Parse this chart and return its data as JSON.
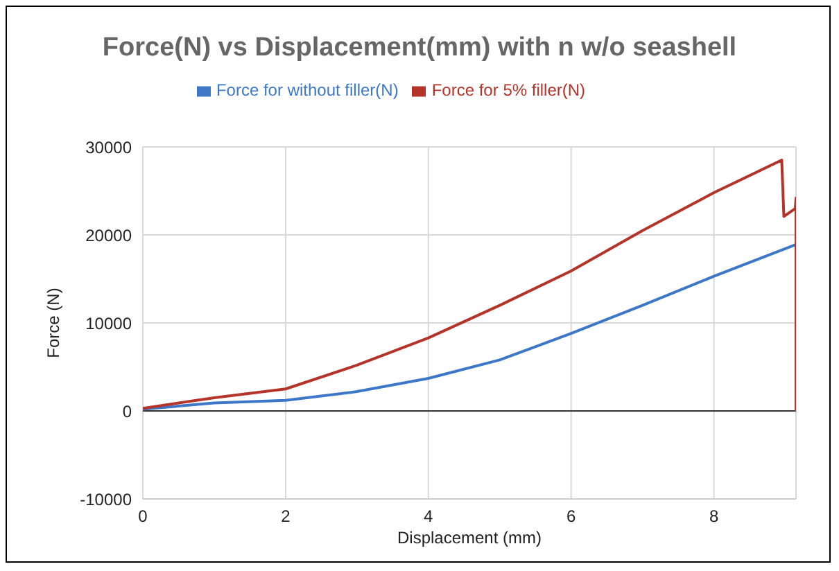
{
  "chart_data": {
    "type": "line",
    "title": "Force(N) vs Displacement(mm) with n w/o seashell",
    "xlabel": "Displacement (mm)",
    "ylabel": "Force (N)",
    "xlim": [
      0,
      9.15
    ],
    "xticks": [
      0,
      2,
      4,
      6,
      8
    ],
    "ylim": [
      -10000,
      30000
    ],
    "yticks": [
      -10000,
      0,
      10000,
      20000,
      30000
    ],
    "grid": true,
    "legend": "top",
    "marker": "none",
    "line_style": "solid",
    "series": [
      {
        "name": "Force for without filler(N)",
        "color": "#3d78c8",
        "x": [
          0,
          1,
          2,
          3,
          4,
          5,
          6,
          7,
          8,
          9.15
        ],
        "values": [
          200,
          900,
          1200,
          2200,
          3700,
          5800,
          8800,
          12000,
          15300,
          18900
        ]
      },
      {
        "name": "Force for 5% filler(N)",
        "color": "#b5342a",
        "x": [
          0,
          1,
          2,
          3,
          4,
          5,
          6,
          7,
          8,
          8.95,
          8.98,
          9.14,
          9.15,
          9.15
        ],
        "values": [
          300,
          1500,
          2500,
          5200,
          8300,
          12000,
          15900,
          20500,
          24800,
          28500,
          22100,
          23000,
          24200,
          0
        ]
      }
    ]
  }
}
